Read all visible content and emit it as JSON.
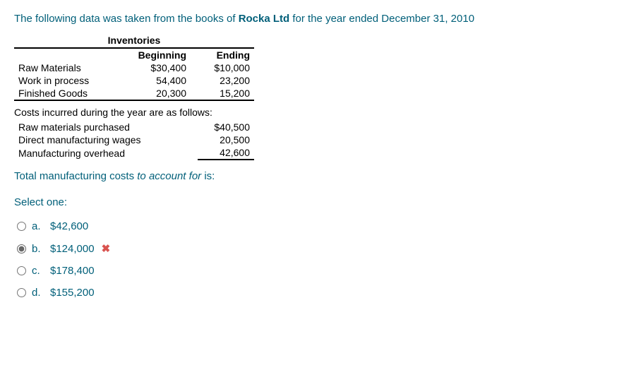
{
  "question": {
    "intro_pre": "The following data was taken from the books of ",
    "company_bold": "Rocka Ltd",
    "intro_post": " for the year ended December 31, 2010"
  },
  "inventories": {
    "title": "Inventories",
    "col_beginning": "Beginning",
    "col_ending": "Ending",
    "rows": [
      {
        "label": "Raw Materials",
        "beginning": "$30,400",
        "ending": "$10,000"
      },
      {
        "label": "Work in process",
        "beginning": "54,400",
        "ending": "23,200"
      },
      {
        "label": "Finished Goods",
        "beginning": "20,300",
        "ending": "15,200"
      }
    ]
  },
  "costs": {
    "heading": "Costs incurred during the year are as follows:",
    "rows": [
      {
        "label": "Raw materials purchased",
        "value": "$40,500"
      },
      {
        "label": "Direct manufacturing wages",
        "value": "20,500"
      },
      {
        "label": "Manufacturing overhead",
        "value": "42,600"
      }
    ]
  },
  "prompt": {
    "pre": "Total manufacturing costs ",
    "italic": "to account for",
    "post": " is:"
  },
  "select_one": "Select one:",
  "options": [
    {
      "letter": "a.",
      "value": "$42,600",
      "selected": false,
      "mark": ""
    },
    {
      "letter": "b.",
      "value": "$124,000",
      "selected": true,
      "mark": "✖"
    },
    {
      "letter": "c.",
      "value": "$178,400",
      "selected": false,
      "mark": ""
    },
    {
      "letter": "d.",
      "value": "$155,200",
      "selected": false,
      "mark": ""
    }
  ],
  "colors": {
    "question_text": "#005f79",
    "table_text": "#000000",
    "wrong_mark": "#d9534f",
    "background": "#ffffff",
    "border": "#000000"
  }
}
